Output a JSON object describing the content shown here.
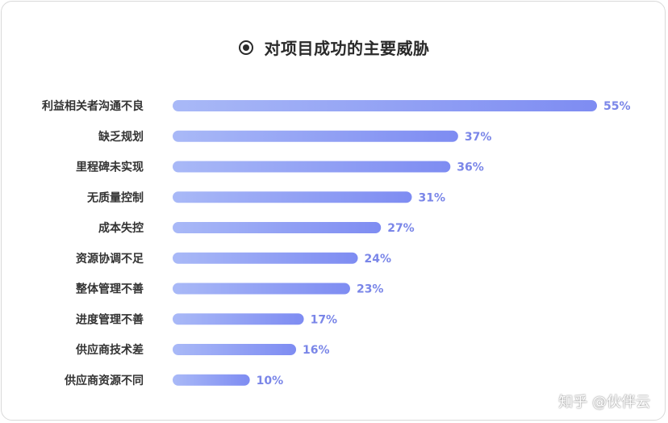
{
  "chart_data": {
    "type": "bar",
    "orientation": "horizontal",
    "title": "对项目成功的主要威胁",
    "categories": [
      "利益相关者沟通不良",
      "缺乏规划",
      "里程碑未实现",
      "无质量控制",
      "成本失控",
      "资源协调不足",
      "整体管理不善",
      "进度管理不善",
      "供应商技术差",
      "供应商资源不同"
    ],
    "values": [
      55,
      37,
      36,
      31,
      27,
      24,
      23,
      17,
      16,
      10
    ],
    "value_labels": [
      "55%",
      "37%",
      "36%",
      "31%",
      "27%",
      "24%",
      "23%",
      "17%",
      "16%",
      "10%"
    ],
    "unit": "%",
    "xlim": [
      0,
      55
    ],
    "grid": false,
    "legend": "none",
    "colors": {
      "bar_start": "#a9b9f7",
      "bar_end": "#7e8cf2",
      "label_text": "#333333",
      "value_text": "#7a86e8"
    }
  },
  "watermark": "知乎 @伙伴云"
}
